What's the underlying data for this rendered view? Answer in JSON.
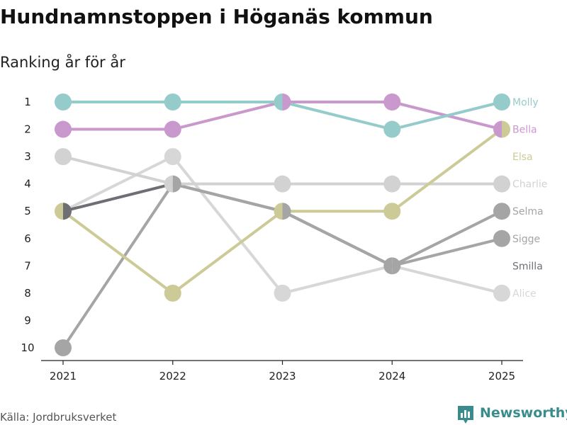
{
  "chart_data": {
    "type": "line",
    "title": "Hundnamnstoppen i Höganäs kommun",
    "subtitle": "Ranking år för år",
    "x": [
      "2021",
      "2022",
      "2023",
      "2024",
      "2025"
    ],
    "y_ticks": [
      "1",
      "2",
      "3",
      "4",
      "5",
      "6",
      "7",
      "8",
      "9",
      "10"
    ],
    "ylim": [
      1,
      10
    ],
    "y_inverted": true,
    "grid": false,
    "series": [
      {
        "name": "Molly",
        "values": [
          1,
          1,
          1,
          2,
          1
        ],
        "color": "#96cbcb"
      },
      {
        "name": "Bella",
        "values": [
          2,
          2,
          1,
          1,
          2
        ],
        "color": "#c998cd"
      },
      {
        "name": "Elsa",
        "values": [
          5,
          8,
          5,
          5,
          2
        ],
        "color": "#cccb97"
      },
      {
        "name": "Charlie",
        "values": [
          3,
          4,
          4,
          4,
          4
        ],
        "color": "#d2d2d2"
      },
      {
        "name": "Selma",
        "values": [
          10,
          4,
          5,
          7,
          5
        ],
        "color": "#a5a5a5"
      },
      {
        "name": "Sigge",
        "values": [
          null,
          null,
          null,
          7,
          6
        ],
        "color": "#a5a5a5"
      },
      {
        "name": "Smilla",
        "values": [
          5,
          4,
          5,
          7,
          null
        ],
        "color": "#6e6e75"
      },
      {
        "name": "Alice",
        "values": [
          5,
          3,
          8,
          7,
          8
        ],
        "color": "#d7d7d7"
      }
    ]
  },
  "footer": {
    "source": "Källa: Jordbruksverket",
    "brand": "Newsworthy"
  },
  "colors": {
    "brand": "#3a8c8c",
    "axis": "#222222"
  },
  "icons": {
    "brand_logo": "bar-chart-bubble-icon"
  }
}
